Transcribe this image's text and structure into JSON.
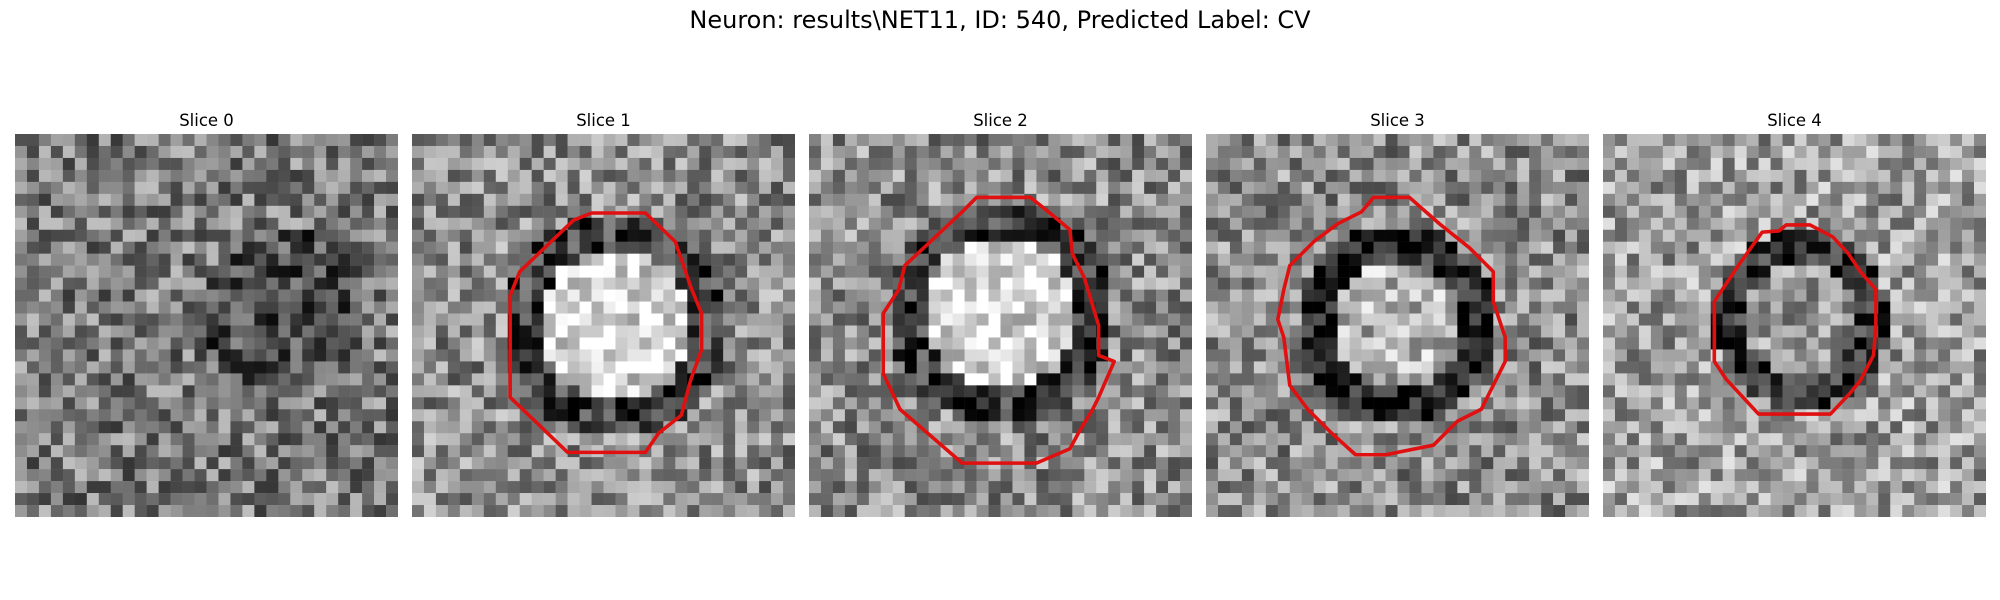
{
  "figure": {
    "title": "Neuron: results\\NET11, ID: 540, Predicted Label: CV"
  },
  "panels": [
    {
      "title": "Slice 0",
      "has_contour": false
    },
    {
      "title": "Slice 1",
      "has_contour": true
    },
    {
      "title": "Slice 2",
      "has_contour": true
    },
    {
      "title": "Slice 3",
      "has_contour": true
    },
    {
      "title": "Slice 4",
      "has_contour": true
    }
  ],
  "colors": {
    "background": "#ffffff",
    "contour": "#e01010"
  },
  "image_style": "grayscale-noise-microscopy"
}
